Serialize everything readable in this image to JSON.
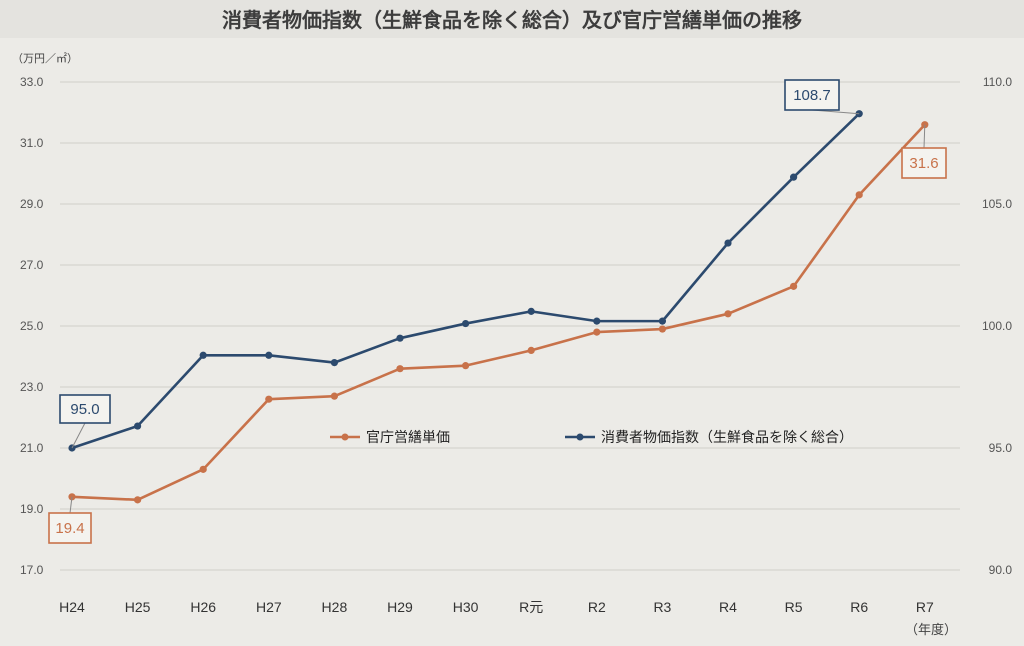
{
  "chart_data": {
    "type": "line",
    "title": "消費者物価指数（生鮮食品を除く総合）及び官庁営繕単価の推移",
    "y_left_unit": "（万円／㎡）",
    "x_unit": "（年度）",
    "categories": [
      "H24",
      "H25",
      "H26",
      "H27",
      "H28",
      "H29",
      "H30",
      "R元",
      "R2",
      "R3",
      "R4",
      "R5",
      "R6",
      "R7"
    ],
    "y_left": {
      "ticks": [
        "17.0",
        "19.0",
        "21.0",
        "23.0",
        "25.0",
        "27.0",
        "29.0",
        "31.0",
        "33.0"
      ],
      "ylim": [
        17.0,
        33.0
      ]
    },
    "y_right": {
      "ticks": [
        "90.0",
        "95.0",
        "100.0",
        "105.0",
        "110.0"
      ],
      "ylim": [
        90.0,
        110.0
      ]
    },
    "grid": true,
    "series": [
      {
        "name": "官庁営繕単価",
        "axis": "left",
        "color": "#c8724a",
        "values": [
          19.4,
          19.3,
          20.3,
          22.6,
          22.7,
          23.6,
          23.7,
          24.2,
          24.8,
          24.9,
          25.4,
          26.3,
          29.3,
          31.6
        ]
      },
      {
        "name": "消費者物価指数（生鮮食品を除く総合）",
        "axis": "right",
        "color": "#2c4a6e",
        "values": [
          95.0,
          95.9,
          98.8,
          98.8,
          98.5,
          99.5,
          100.1,
          100.6,
          100.2,
          100.2,
          103.4,
          106.1,
          108.7,
          null
        ]
      }
    ],
    "callouts": [
      {
        "text": "95.0",
        "series": 1,
        "index": 0
      },
      {
        "text": "19.4",
        "series": 0,
        "index": 0
      },
      {
        "text": "108.7",
        "series": 1,
        "index": 12
      },
      {
        "text": "31.6",
        "series": 0,
        "index": 13
      }
    ],
    "legend_placement": "center"
  }
}
